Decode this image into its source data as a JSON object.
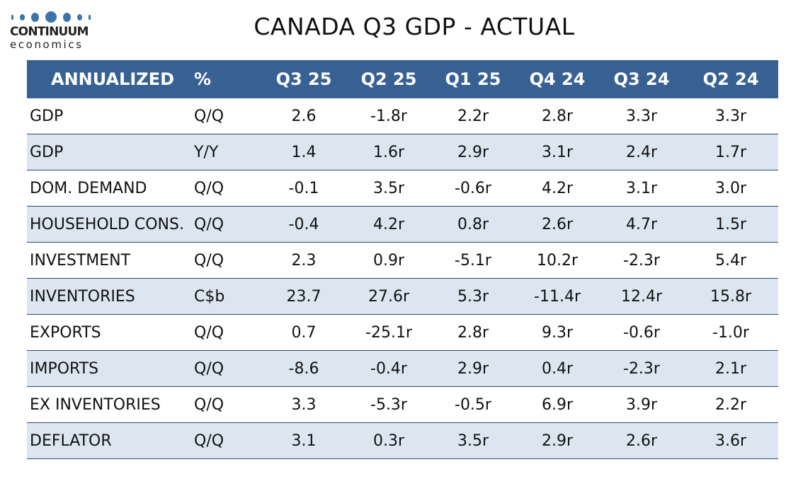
{
  "logo": {
    "top": "CONTINUUM",
    "bottom": "economics"
  },
  "title": "CANADA Q3 GDP  - ACTUAL",
  "table": {
    "headers": [
      "ANNUALIZED",
      "%",
      "Q3 25",
      "Q2 25",
      "Q1 25",
      "Q4 24",
      "Q3 24",
      "Q2 24"
    ],
    "rows": [
      [
        "GDP",
        "Q/Q",
        "2.6",
        "-1.8r",
        "2.2r",
        "2.8r",
        "3.3r",
        "3.3r"
      ],
      [
        "GDP",
        "Y/Y",
        "1.4",
        "1.6r",
        "2.9r",
        "3.1r",
        "2.4r",
        "1.7r"
      ],
      [
        "DOM. DEMAND",
        "Q/Q",
        "-0.1",
        "3.5r",
        "-0.6r",
        "4.2r",
        "3.1r",
        "3.0r"
      ],
      [
        "HOUSEHOLD CONS.",
        "Q/Q",
        "-0.4",
        "4.2r",
        "0.8r",
        "2.6r",
        "4.7r",
        "1.5r"
      ],
      [
        "INVESTMENT",
        "Q/Q",
        "2.3",
        "0.9r",
        "-5.1r",
        "10.2r",
        "-2.3r",
        "5.4r"
      ],
      [
        "INVENTORIES",
        "C$b",
        "23.7",
        "27.6r",
        "5.3r",
        "-11.4r",
        "12.4r",
        "15.8r"
      ],
      [
        "EXPORTS",
        "Q/Q",
        "0.7",
        "-25.1r",
        "2.8r",
        "9.3r",
        "-0.6r",
        "-1.0r"
      ],
      [
        "IMPORTS",
        "Q/Q",
        "-8.6",
        "-0.4r",
        "2.9r",
        "0.4r",
        "-2.3r",
        "2.1r"
      ],
      [
        "EX INVENTORIES",
        "Q/Q",
        "3.3",
        "-5.3r",
        "-0.5r",
        "6.9r",
        "3.9r",
        "2.2r"
      ],
      [
        "DEFLATOR",
        "Q/Q",
        "3.1",
        "0.3r",
        "3.5r",
        "2.9r",
        "2.6r",
        "3.6r"
      ]
    ]
  },
  "colors": {
    "header_bg": "#386193",
    "alt_row_bg": "#dce6f1",
    "brand_blue": "#3a74ab"
  }
}
